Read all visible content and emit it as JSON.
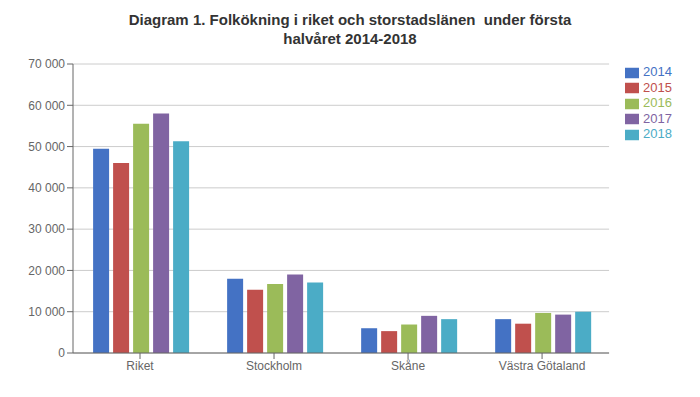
{
  "chart_data": {
    "type": "bar",
    "title": "Diagram 1. Folkökning i riket och storstadslänen  under första\nhalvåret 2014-2018",
    "categories": [
      "Riket",
      "Stockholm",
      "Skåne",
      "Västra Götaland"
    ],
    "series": [
      {
        "name": "2014",
        "color": "#4472C4",
        "values": [
          49500,
          18000,
          6000,
          8200
        ]
      },
      {
        "name": "2015",
        "color": "#C0504D",
        "values": [
          46000,
          15300,
          5300,
          7100
        ]
      },
      {
        "name": "2016",
        "color": "#9BBB59",
        "values": [
          55500,
          16700,
          6900,
          9700
        ]
      },
      {
        "name": "2017",
        "color": "#8064A2",
        "values": [
          58000,
          19000,
          9000,
          9300
        ]
      },
      {
        "name": "2018",
        "color": "#4BACC6",
        "values": [
          51300,
          17100,
          8200,
          10000
        ]
      }
    ],
    "ylim": [
      0,
      70000
    ],
    "yticks": [
      0,
      {
        "value": 10000,
        "label": "10 000"
      },
      {
        "value": 20000,
        "label": "20 000"
      },
      {
        "value": 30000,
        "label": "30 000"
      },
      {
        "value": 40000,
        "label": "40 000"
      },
      {
        "value": 50000,
        "label": "50 000"
      },
      {
        "value": 60000,
        "label": "60 000"
      },
      {
        "value": 70000,
        "label": "70 000"
      }
    ],
    "grid": true,
    "legend": "right"
  }
}
